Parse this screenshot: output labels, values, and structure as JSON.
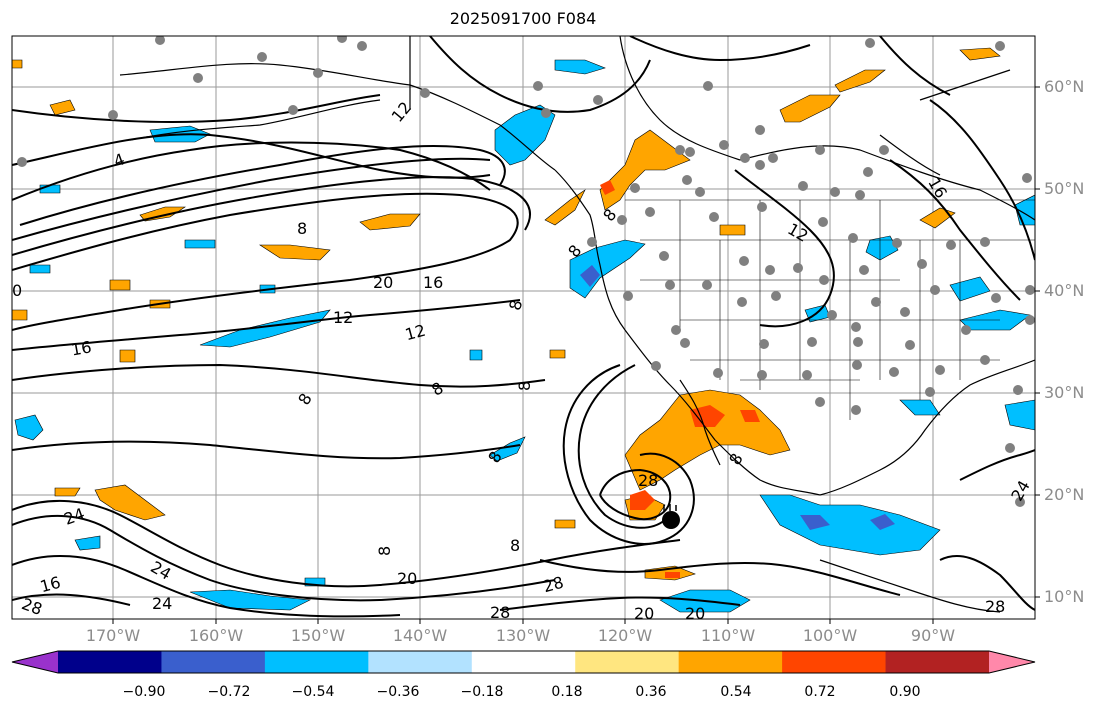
{
  "title": "2025091700 F084",
  "lat_labels": [
    "60°N",
    "50°N",
    "40°N",
    "30°N",
    "20°N",
    "10°N"
  ],
  "lon_labels": [
    "170°W",
    "160°W",
    "150°W",
    "140°W",
    "130°W",
    "120°W",
    "110°W",
    "100°W",
    "90°W"
  ],
  "colorbar": {
    "tick_labels": [
      "−0.90",
      "−0.72",
      "−0.54",
      "−0.36",
      "−0.18",
      "0.18",
      "0.36",
      "0.54",
      "0.72",
      "0.90"
    ],
    "colors": [
      "#9932cc",
      "#00008b",
      "#3a5fcd",
      "#00bfff",
      "#b2e2ff",
      "#ffffff",
      "#ffe680",
      "#ffa500",
      "#ff4500",
      "#b22222",
      "#ff88aa"
    ]
  },
  "contour_labels": [
    "12",
    "4",
    "8",
    "20",
    "16",
    "12",
    "12",
    "8",
    "8",
    "8",
    "8",
    "28",
    "8",
    "8",
    "8",
    "24",
    "16",
    "24",
    "20",
    "28",
    "28",
    "28",
    "24",
    "20",
    "20",
    "16",
    "8",
    "8",
    "12",
    "16",
    "0",
    "8",
    "24",
    "28"
  ]
}
